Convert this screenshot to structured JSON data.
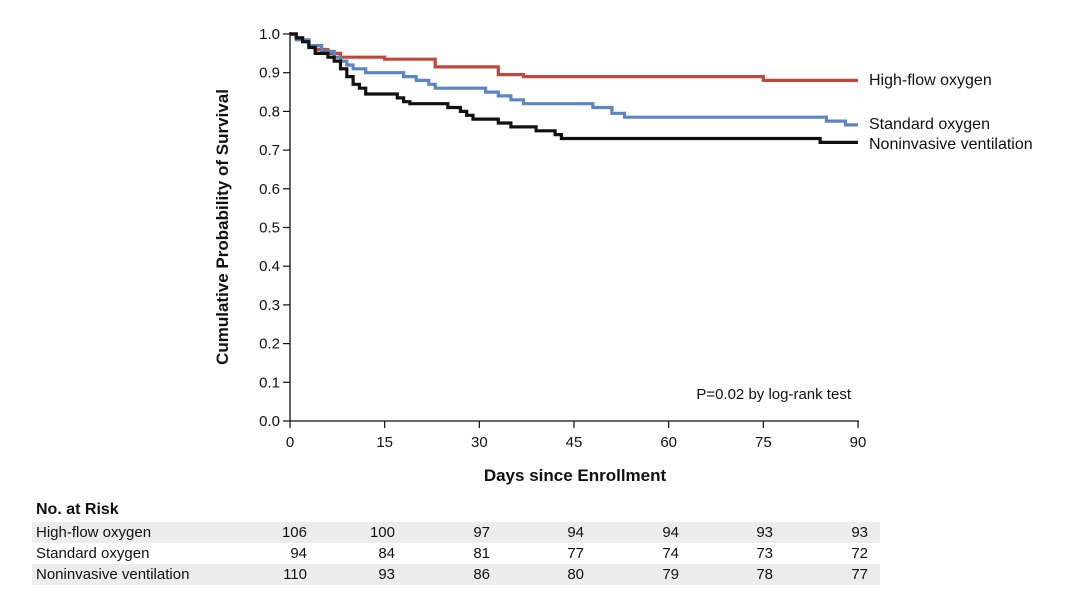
{
  "chart_data": {
    "type": "line",
    "subtype": "kaplan-meier",
    "title": "",
    "xlabel": "Days since Enrollment",
    "ylabel": "Cumulative Probability of Survival",
    "xlim": [
      0,
      90
    ],
    "ylim": [
      0.0,
      1.0
    ],
    "x_ticks": [
      0,
      15,
      30,
      45,
      60,
      75,
      90
    ],
    "y_ticks": [
      "0.0",
      "0.1",
      "0.2",
      "0.3",
      "0.4",
      "0.5",
      "0.6",
      "0.7",
      "0.8",
      "0.9",
      "1.0"
    ],
    "grid": false,
    "legend": "series labels at right end of lines",
    "annotation": "P=0.02 by log-rank test",
    "series": [
      {
        "name": "High-flow oxygen",
        "color": "#c0473b",
        "points": [
          [
            0,
            1.0
          ],
          [
            1,
            0.99
          ],
          [
            2,
            0.98
          ],
          [
            3,
            0.97
          ],
          [
            4,
            0.96
          ],
          [
            6,
            0.95
          ],
          [
            8,
            0.94
          ],
          [
            15,
            0.935
          ],
          [
            23,
            0.915
          ],
          [
            33,
            0.895
          ],
          [
            37,
            0.89
          ],
          [
            75,
            0.88
          ],
          [
            90,
            0.88
          ]
        ]
      },
      {
        "name": "Standard oxygen",
        "color": "#5b86c0",
        "points": [
          [
            0,
            1.0
          ],
          [
            1,
            0.985
          ],
          [
            3,
            0.97
          ],
          [
            5,
            0.955
          ],
          [
            7,
            0.94
          ],
          [
            8,
            0.93
          ],
          [
            9,
            0.92
          ],
          [
            10,
            0.91
          ],
          [
            12,
            0.9
          ],
          [
            18,
            0.89
          ],
          [
            20,
            0.88
          ],
          [
            22,
            0.87
          ],
          [
            23,
            0.86
          ],
          [
            31,
            0.85
          ],
          [
            33,
            0.84
          ],
          [
            35,
            0.83
          ],
          [
            37,
            0.82
          ],
          [
            48,
            0.81
          ],
          [
            51,
            0.795
          ],
          [
            53,
            0.785
          ],
          [
            85,
            0.775
          ],
          [
            88,
            0.765
          ],
          [
            90,
            0.765
          ]
        ]
      },
      {
        "name": "Noninvasive ventilation",
        "color": "#111111",
        "points": [
          [
            0,
            1.0
          ],
          [
            1,
            0.99
          ],
          [
            2,
            0.98
          ],
          [
            3,
            0.965
          ],
          [
            4,
            0.95
          ],
          [
            6,
            0.94
          ],
          [
            7,
            0.93
          ],
          [
            8,
            0.91
          ],
          [
            9,
            0.89
          ],
          [
            10,
            0.87
          ],
          [
            11,
            0.86
          ],
          [
            12,
            0.845
          ],
          [
            17,
            0.835
          ],
          [
            18,
            0.825
          ],
          [
            19,
            0.82
          ],
          [
            25,
            0.81
          ],
          [
            27,
            0.8
          ],
          [
            28,
            0.79
          ],
          [
            29,
            0.78
          ],
          [
            33,
            0.77
          ],
          [
            35,
            0.76
          ],
          [
            39,
            0.75
          ],
          [
            42,
            0.74
          ],
          [
            43,
            0.73
          ],
          [
            84,
            0.72
          ],
          [
            90,
            0.72
          ]
        ]
      }
    ],
    "risk_table": {
      "title": "No. at Risk",
      "times": [
        0,
        15,
        30,
        45,
        60,
        75,
        90
      ],
      "rows": [
        {
          "name": "High-flow oxygen",
          "values": [
            "106",
            "100",
            "97",
            "94",
            "94",
            "93",
            "93"
          ]
        },
        {
          "name": "Standard oxygen",
          "values": [
            "94",
            "84",
            "81",
            "77",
            "74",
            "73",
            "72"
          ]
        },
        {
          "name": "Noninvasive ventilation",
          "values": [
            "110",
            "93",
            "86",
            "80",
            "79",
            "78",
            "77"
          ]
        }
      ]
    }
  }
}
